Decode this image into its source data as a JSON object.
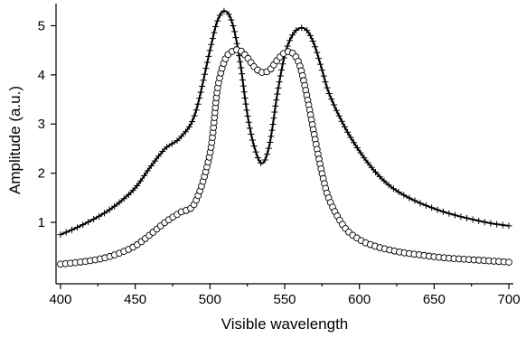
{
  "chart_data": {
    "type": "line",
    "xlabel": "Visible wavelength",
    "ylabel": "Amplitude (a.u.)",
    "xlim": [
      397,
      703
    ],
    "ylim": [
      -0.25,
      5.45
    ],
    "xticks": [
      400,
      450,
      500,
      550,
      600,
      650,
      700
    ],
    "yticks": [
      1,
      2,
      3,
      4,
      5
    ],
    "grid": false,
    "legend": "none",
    "x": [
      400,
      410,
      420,
      430,
      440,
      450,
      460,
      470,
      480,
      490,
      500,
      505,
      510,
      515,
      520,
      525,
      530,
      535,
      540,
      545,
      550,
      555,
      560,
      565,
      570,
      575,
      580,
      590,
      600,
      610,
      620,
      630,
      640,
      650,
      660,
      670,
      680,
      690,
      700
    ],
    "series": [
      {
        "marker": "plus",
        "values": [
          0.75,
          0.88,
          1.03,
          1.2,
          1.42,
          1.7,
          2.12,
          2.5,
          2.72,
          3.2,
          4.5,
          5.1,
          5.3,
          5.05,
          4.3,
          3.2,
          2.5,
          2.2,
          2.6,
          3.6,
          4.4,
          4.8,
          4.95,
          4.9,
          4.6,
          4.1,
          3.6,
          2.95,
          2.45,
          2.05,
          1.75,
          1.55,
          1.4,
          1.28,
          1.18,
          1.1,
          1.03,
          0.97,
          0.93
        ]
      },
      {
        "marker": "circle",
        "values": [
          0.15,
          0.18,
          0.22,
          0.28,
          0.38,
          0.52,
          0.75,
          1.0,
          1.2,
          1.4,
          2.4,
          3.7,
          4.3,
          4.48,
          4.5,
          4.35,
          4.15,
          4.05,
          4.1,
          4.3,
          4.45,
          4.45,
          4.2,
          3.55,
          2.75,
          2.0,
          1.45,
          0.9,
          0.65,
          0.52,
          0.44,
          0.38,
          0.34,
          0.3,
          0.27,
          0.25,
          0.23,
          0.21,
          0.19
        ]
      }
    ]
  }
}
